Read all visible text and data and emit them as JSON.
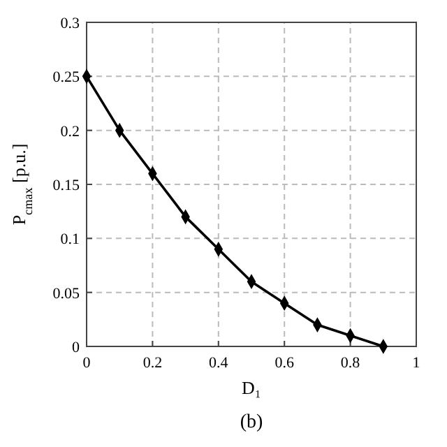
{
  "chart_data": {
    "type": "line",
    "xlabel": "D₁",
    "ylabel": "P$_{cmax}$ [p.u.]",
    "annotations": [
      "(b)"
    ],
    "x": [
      0,
      0.1,
      0.2,
      0.3,
      0.4,
      0.5,
      0.6,
      0.7,
      0.8,
      0.9
    ],
    "series": [
      {
        "color": "#000000",
        "values": [
          0.25,
          0.2,
          0.16,
          0.12,
          0.09,
          0.06,
          0.04,
          0.02,
          0.01,
          0
        ]
      }
    ],
    "xlim": [
      0,
      1
    ],
    "ylim": [
      0,
      0.3
    ],
    "xticks": [
      0,
      0.2,
      0.4,
      0.6,
      0.8,
      1
    ],
    "yticks": [
      0,
      0.05,
      0.1,
      0.15,
      0.2,
      0.25,
      0.3
    ],
    "grid": true,
    "marker": "diamond",
    "line_style": "solid"
  }
}
